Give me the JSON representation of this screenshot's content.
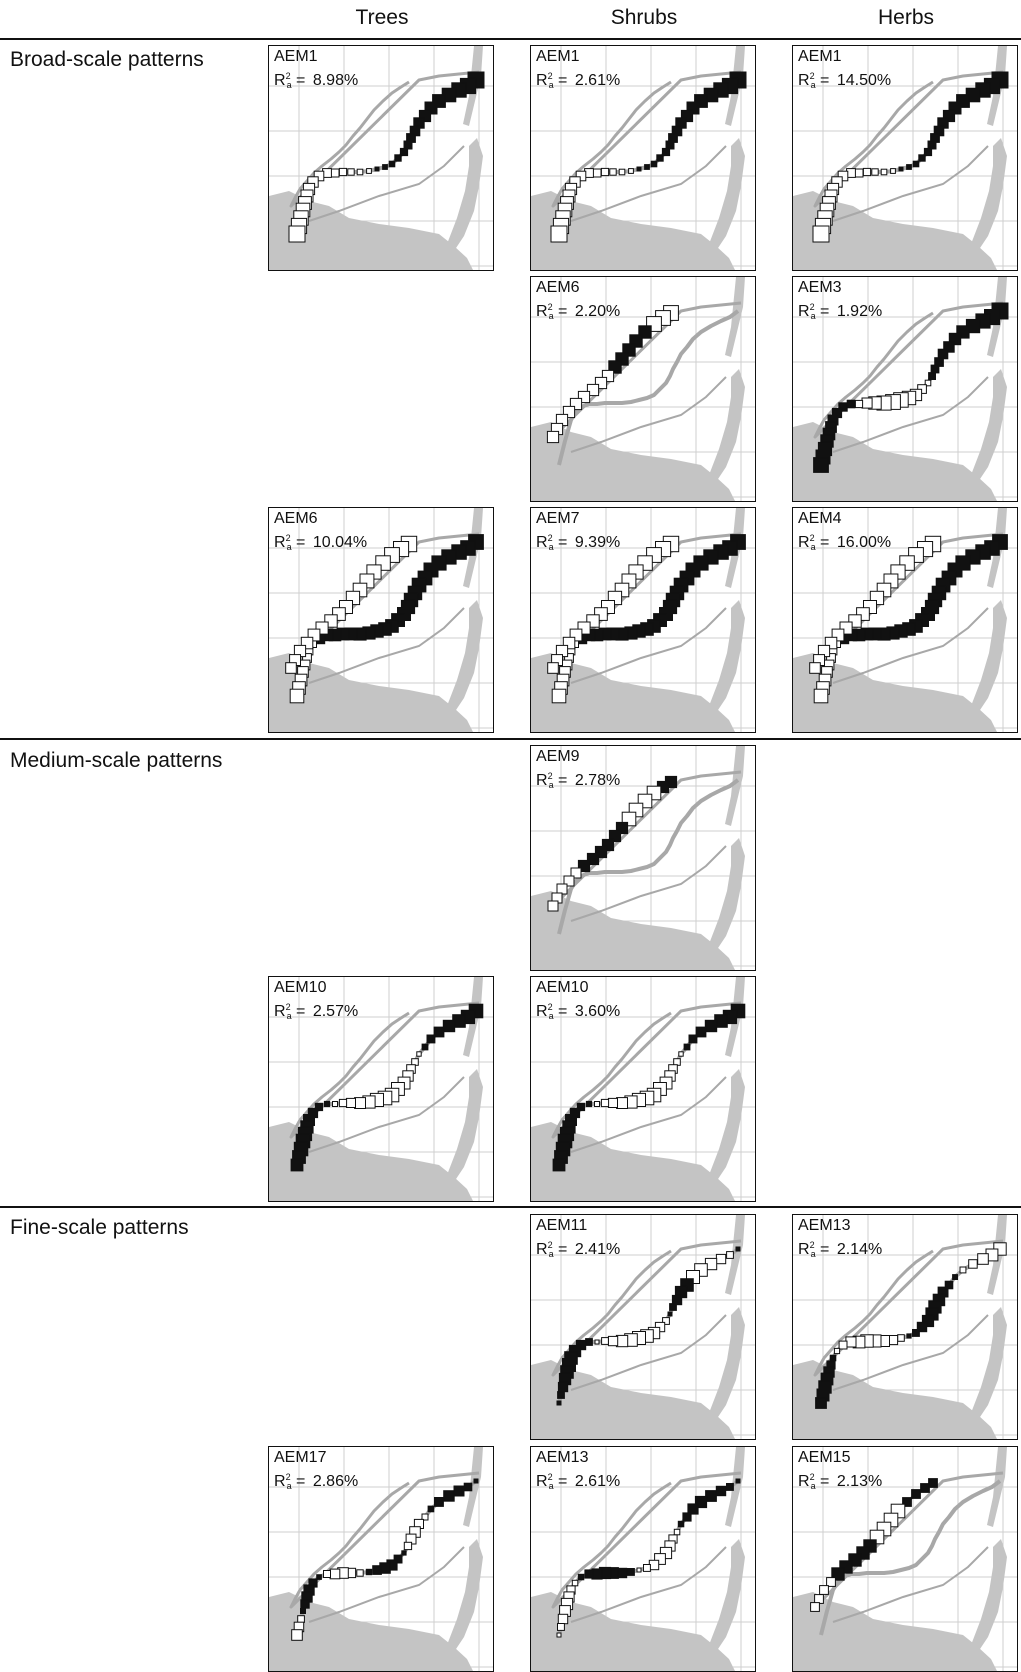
{
  "columns": [
    "Trees",
    "Shrubs",
    "Herbs"
  ],
  "sections": [
    "Broad-scale patterns",
    "Medium-scale patterns",
    "Fine-scale patterns"
  ],
  "r2_label": {
    "letter": "R",
    "sup": "2",
    "sub": "a",
    "eq": " = "
  },
  "colors": {
    "water": "#c4c4c4",
    "grid": "#cfcfcf",
    "river": "#a8a8a8",
    "positive": "#111111",
    "negative": "#ffffff"
  },
  "panels": [
    {
      "col": 0,
      "slot": 0,
      "title": "AEM1",
      "r2": "8.98%",
      "pattern": "a1"
    },
    {
      "col": 1,
      "slot": 0,
      "title": "AEM1",
      "r2": "2.61%",
      "pattern": "a1"
    },
    {
      "col": 2,
      "slot": 0,
      "title": "AEM1",
      "r2": "14.50%",
      "pattern": "a1"
    },
    {
      "col": 1,
      "slot": 1,
      "title": "AEM6",
      "r2": "2.20%",
      "pattern": "a6s"
    },
    {
      "col": 2,
      "slot": 1,
      "title": "AEM3",
      "r2": "1.92%",
      "pattern": "a3"
    },
    {
      "col": 0,
      "slot": 2,
      "title": "AEM6",
      "r2": "10.04%",
      "pattern": "a6"
    },
    {
      "col": 1,
      "slot": 2,
      "title": "AEM7",
      "r2": "9.39%",
      "pattern": "a6"
    },
    {
      "col": 2,
      "slot": 2,
      "title": "AEM4",
      "r2": "16.00%",
      "pattern": "a6"
    },
    {
      "col": 1,
      "slot": 3,
      "title": "AEM9",
      "r2": "2.78%",
      "pattern": "a9"
    },
    {
      "col": 0,
      "slot": 4,
      "title": "AEM10",
      "r2": "2.57%",
      "pattern": "a10"
    },
    {
      "col": 1,
      "slot": 4,
      "title": "AEM10",
      "r2": "3.60%",
      "pattern": "a10"
    },
    {
      "col": 1,
      "slot": 5,
      "title": "AEM11",
      "r2": "2.41%",
      "pattern": "a11"
    },
    {
      "col": 2,
      "slot": 5,
      "title": "AEM13",
      "r2": "2.14%",
      "pattern": "a13h"
    },
    {
      "col": 0,
      "slot": 6,
      "title": "AEM17",
      "r2": "2.86%",
      "pattern": "a17"
    },
    {
      "col": 1,
      "slot": 6,
      "title": "AEM13",
      "r2": "2.61%",
      "pattern": "a13s"
    },
    {
      "col": 2,
      "slot": 6,
      "title": "AEM15",
      "r2": "2.13%",
      "pattern": "a15"
    }
  ]
}
